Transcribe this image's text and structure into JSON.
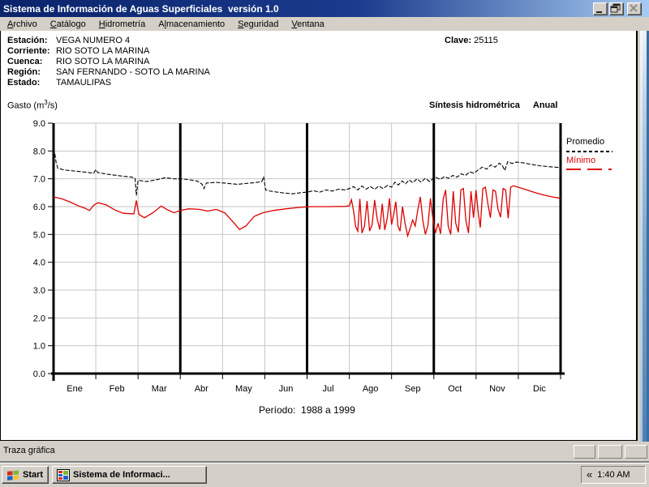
{
  "window": {
    "title": "Sistema de Información de Aguas Superficiales  versión 1.0"
  },
  "menu": {
    "items": [
      {
        "pre": "",
        "key": "A",
        "post": "rchivo"
      },
      {
        "pre": "",
        "key": "C",
        "post": "atálogo"
      },
      {
        "pre": "",
        "key": "H",
        "post": "idrometría"
      },
      {
        "pre": "A",
        "key": "l",
        "post": "macenamiento"
      },
      {
        "pre": "",
        "key": "S",
        "post": "eguridad"
      },
      {
        "pre": "",
        "key": "V",
        "post": "entana"
      }
    ]
  },
  "info": {
    "rows": [
      {
        "label": "Estación:",
        "value": "VEGA NUMERO 4"
      },
      {
        "label": "Corriente:",
        "value": "RIO SOTO LA MARINA"
      },
      {
        "label": "Cuenca:",
        "value": "RIO SOTO LA MARINA"
      },
      {
        "label": "Región:",
        "value": "SAN FERNANDO - SOTO LA MARINA"
      },
      {
        "label": "Estado:",
        "value": "TAMAULIPAS"
      }
    ],
    "clave_label": "Clave:",
    "clave_value": "25115"
  },
  "chart_header": {
    "gasto_pre": "Gasto (m",
    "gasto_sup": "3",
    "gasto_post": "/s)",
    "right_title": "Síntesis hidrométrica",
    "right_mode": "Anual"
  },
  "legend": {
    "promedio": "Promedio",
    "minimo": "Mínimo"
  },
  "periodo": "Período:  1988 a 1999",
  "statusbar": {
    "text": "Traza gráfica"
  },
  "taskbar": {
    "start_label": "Start",
    "task_label": "Sistema de Informaci...",
    "tray_chevron": "«",
    "clock": "1:40 AM"
  },
  "colors": {
    "titlebar_left": "#0a246a",
    "titlebar_right": "#a6caf0",
    "chrome": "#d4d0c8",
    "promedio_line": "#000000",
    "minimo_line": "#dd0000",
    "gridline": "#c6c6c6"
  },
  "chart_data": {
    "type": "line",
    "title": "Síntesis hidrométrica Anual",
    "ylabel": "Gasto (m3/s)",
    "period": "1988 a 1999",
    "ylim": [
      0,
      9
    ],
    "y_ticks": [
      "9.0",
      "8.0",
      "7.0",
      "6.0",
      "5.0",
      "4.0",
      "3.0",
      "2.0",
      "1.0",
      "0.0"
    ],
    "months": [
      "Ene",
      "Feb",
      "Mar",
      "Abr",
      "May",
      "Jun",
      "Jul",
      "Ago",
      "Sep",
      "Oct",
      "Nov",
      "Dic"
    ],
    "quarter_dividers_after_month": [
      3,
      6,
      9,
      12
    ],
    "grid": true,
    "legend_position": "right-top",
    "series": [
      {
        "name": "Mínimo",
        "color": "#dd0000",
        "style": "solid",
        "points": [
          [
            0,
            6.35
          ],
          [
            0.2,
            6.28
          ],
          [
            0.4,
            6.16
          ],
          [
            0.6,
            6.02
          ],
          [
            0.75,
            5.94
          ],
          [
            0.85,
            5.86
          ],
          [
            0.95,
            6.05
          ],
          [
            1.05,
            6.14
          ],
          [
            1.25,
            6.06
          ],
          [
            1.45,
            5.88
          ],
          [
            1.65,
            5.76
          ],
          [
            1.9,
            5.74
          ],
          [
            1.96,
            6.22
          ],
          [
            2.02,
            5.72
          ],
          [
            2.15,
            5.6
          ],
          [
            2.35,
            5.78
          ],
          [
            2.55,
            6.02
          ],
          [
            2.7,
            5.88
          ],
          [
            2.85,
            5.78
          ],
          [
            3,
            5.86
          ],
          [
            3.2,
            5.92
          ],
          [
            3.45,
            5.9
          ],
          [
            3.65,
            5.84
          ],
          [
            3.85,
            5.9
          ],
          [
            4.05,
            5.78
          ],
          [
            4.25,
            5.45
          ],
          [
            4.4,
            5.18
          ],
          [
            4.55,
            5.3
          ],
          [
            4.75,
            5.65
          ],
          [
            4.95,
            5.78
          ],
          [
            5.2,
            5.86
          ],
          [
            5.5,
            5.92
          ],
          [
            5.8,
            5.97
          ],
          [
            6.1,
            6
          ],
          [
            6.5,
            6
          ],
          [
            6.9,
            6.01
          ],
          [
            7,
            6.03
          ],
          [
            7.05,
            6.25
          ],
          [
            7.1,
            5.85
          ],
          [
            7.15,
            5.28
          ],
          [
            7.2,
            5.12
          ],
          [
            7.25,
            6.28
          ],
          [
            7.3,
            5.05
          ],
          [
            7.36,
            5.3
          ],
          [
            7.42,
            6.2
          ],
          [
            7.48,
            5.12
          ],
          [
            7.54,
            5.35
          ],
          [
            7.6,
            6.24
          ],
          [
            7.66,
            5.55
          ],
          [
            7.72,
            5.18
          ],
          [
            7.78,
            6.1
          ],
          [
            7.84,
            5.16
          ],
          [
            7.9,
            5.62
          ],
          [
            7.95,
            6.3
          ],
          [
            8,
            5.35
          ],
          [
            8.05,
            5.72
          ],
          [
            8.1,
            6.18
          ],
          [
            8.15,
            5.3
          ],
          [
            8.2,
            5.12
          ],
          [
            8.26,
            6
          ],
          [
            8.32,
            5.4
          ],
          [
            8.38,
            4.95
          ],
          [
            8.44,
            5.22
          ],
          [
            8.5,
            5.52
          ],
          [
            8.56,
            5.3
          ],
          [
            8.62,
            5.88
          ],
          [
            8.68,
            6.35
          ],
          [
            8.74,
            5.5
          ],
          [
            8.8,
            5
          ],
          [
            8.86,
            5.32
          ],
          [
            8.92,
            6.3
          ],
          [
            8.98,
            5.55
          ],
          [
            9.04,
            5.05
          ],
          [
            9.1,
            5.4
          ],
          [
            9.16,
            5.02
          ],
          [
            9.22,
            6.25
          ],
          [
            9.28,
            6.6
          ],
          [
            9.34,
            5.3
          ],
          [
            9.4,
            5
          ],
          [
            9.46,
            6.55
          ],
          [
            9.52,
            5.4
          ],
          [
            9.58,
            5.08
          ],
          [
            9.64,
            6.6
          ],
          [
            9.7,
            6.65
          ],
          [
            9.76,
            5.5
          ],
          [
            9.82,
            5.05
          ],
          [
            9.88,
            6.55
          ],
          [
            9.94,
            5.6
          ],
          [
            10,
            6.6
          ],
          [
            10.05,
            5.8
          ],
          [
            10.1,
            5.25
          ],
          [
            10.16,
            6.65
          ],
          [
            10.22,
            6.7
          ],
          [
            10.28,
            6.1
          ],
          [
            10.34,
            5.6
          ],
          [
            10.4,
            6.6
          ],
          [
            10.46,
            6.55
          ],
          [
            10.52,
            5.9
          ],
          [
            10.58,
            5.62
          ],
          [
            10.64,
            6.65
          ],
          [
            10.7,
            6.6
          ],
          [
            10.76,
            5.58
          ],
          [
            10.82,
            6.7
          ],
          [
            10.88,
            6.75
          ],
          [
            11,
            6.7
          ],
          [
            11.2,
            6.6
          ],
          [
            11.4,
            6.5
          ],
          [
            11.6,
            6.42
          ],
          [
            11.8,
            6.35
          ],
          [
            12,
            6.3
          ]
        ]
      },
      {
        "name": "Promedio",
        "color": "#000000",
        "style": "dashed",
        "points": [
          [
            0,
            8.1
          ],
          [
            0.03,
            7.9
          ],
          [
            0.06,
            7.6
          ],
          [
            0.1,
            7.38
          ],
          [
            0.25,
            7.32
          ],
          [
            0.5,
            7.28
          ],
          [
            0.75,
            7.24
          ],
          [
            0.95,
            7.2
          ],
          [
            1,
            7.33
          ],
          [
            1.05,
            7.22
          ],
          [
            1.3,
            7.16
          ],
          [
            1.6,
            7.1
          ],
          [
            1.85,
            7.06
          ],
          [
            1.93,
            7.02
          ],
          [
            1.96,
            6.4
          ],
          [
            2,
            6.95
          ],
          [
            2.2,
            6.9
          ],
          [
            2.45,
            6.97
          ],
          [
            2.65,
            7.04
          ],
          [
            2.85,
            7
          ],
          [
            3,
            7
          ],
          [
            3.2,
            6.97
          ],
          [
            3.4,
            6.92
          ],
          [
            3.52,
            6.8
          ],
          [
            3.56,
            6.65
          ],
          [
            3.62,
            6.85
          ],
          [
            3.85,
            6.87
          ],
          [
            4.1,
            6.84
          ],
          [
            4.35,
            6.8
          ],
          [
            4.6,
            6.84
          ],
          [
            4.8,
            6.87
          ],
          [
            4.93,
            6.9
          ],
          [
            4.97,
            7.08
          ],
          [
            5.02,
            6.6
          ],
          [
            5.15,
            6.55
          ],
          [
            5.4,
            6.5
          ],
          [
            5.65,
            6.46
          ],
          [
            5.85,
            6.5
          ],
          [
            6,
            6.52
          ],
          [
            6.15,
            6.57
          ],
          [
            6.3,
            6.52
          ],
          [
            6.45,
            6.6
          ],
          [
            6.6,
            6.56
          ],
          [
            6.75,
            6.63
          ],
          [
            6.9,
            6.6
          ],
          [
            7,
            6.65
          ],
          [
            7.1,
            6.72
          ],
          [
            7.2,
            6.6
          ],
          [
            7.3,
            6.74
          ],
          [
            7.4,
            6.63
          ],
          [
            7.5,
            6.72
          ],
          [
            7.6,
            6.62
          ],
          [
            7.7,
            6.74
          ],
          [
            7.8,
            6.65
          ],
          [
            7.9,
            6.76
          ],
          [
            8,
            6.7
          ],
          [
            8.08,
            6.88
          ],
          [
            8.16,
            6.78
          ],
          [
            8.25,
            6.92
          ],
          [
            8.33,
            6.82
          ],
          [
            8.42,
            6.96
          ],
          [
            8.5,
            6.86
          ],
          [
            8.6,
            7
          ],
          [
            8.7,
            6.88
          ],
          [
            8.8,
            7.02
          ],
          [
            8.9,
            6.9
          ],
          [
            8.97,
            7
          ],
          [
            9.05,
            7.05
          ],
          [
            9.15,
            6.98
          ],
          [
            9.25,
            7.08
          ],
          [
            9.35,
            7.02
          ],
          [
            9.45,
            7.12
          ],
          [
            9.55,
            7.06
          ],
          [
            9.65,
            7.18
          ],
          [
            9.75,
            7.12
          ],
          [
            9.85,
            7.25
          ],
          [
            9.95,
            7.2
          ],
          [
            10.05,
            7.32
          ],
          [
            10.15,
            7.42
          ],
          [
            10.25,
            7.35
          ],
          [
            10.35,
            7.5
          ],
          [
            10.45,
            7.42
          ],
          [
            10.55,
            7.56
          ],
          [
            10.62,
            7.48
          ],
          [
            10.68,
            7.3
          ],
          [
            10.75,
            7.62
          ],
          [
            10.85,
            7.55
          ],
          [
            10.95,
            7.6
          ],
          [
            11.1,
            7.58
          ],
          [
            11.3,
            7.52
          ],
          [
            11.5,
            7.47
          ],
          [
            11.7,
            7.44
          ],
          [
            11.85,
            7.42
          ],
          [
            12,
            7.4
          ]
        ]
      }
    ]
  }
}
